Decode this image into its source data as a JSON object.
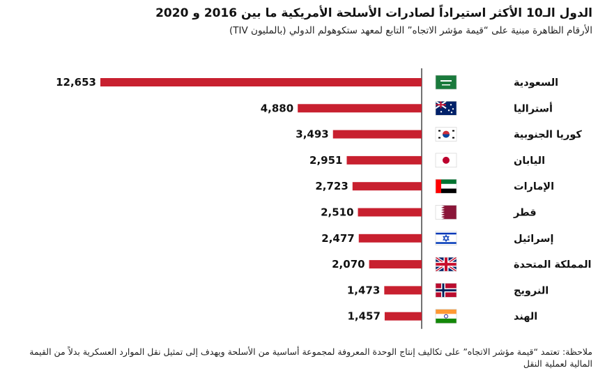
{
  "header": {
    "title": "الدول الـ10 الأكثر استيراداً لصادرات الأسلحة الأمريكية ما بين 2016 و 2020",
    "subtitle": "الأرقام الظاهرة مبنية على “قيمة مؤشر الاتجاه” التابع لمعهد ستكوهولم الدولي (بالمليون TIV)"
  },
  "note": "ملاحظة: تعتمد “قيمة مؤشر الاتجاه” على تكاليف إنتاج الوحدة المعروفة لمجموعة أساسية من الأسلحة ويهدف إلى تمثيل نقل الموارد العسكرية بدلاً من القيمة المالية لعملية النقل",
  "colors": {
    "bar": "#c8202f",
    "axis": "#444444",
    "text": "#111111"
  },
  "chart_data": {
    "type": "bar",
    "orientation": "horizontal",
    "direction": "right-to-left",
    "categories": [
      "السعودية",
      "أستراليا",
      "كوريا الجنوبية",
      "اليابان",
      "الإمارات",
      "قطر",
      "إسرائيل",
      "المملكة المتحدة",
      "النرويج",
      "الهند"
    ],
    "flags": [
      "saudi-arabia-flag-icon",
      "australia-flag-icon",
      "south-korea-flag-icon",
      "japan-flag-icon",
      "uae-flag-icon",
      "qatar-flag-icon",
      "israel-flag-icon",
      "uk-flag-icon",
      "norway-flag-icon",
      "india-flag-icon"
    ],
    "values": [
      12653,
      4880,
      3493,
      2951,
      2723,
      2510,
      2477,
      2070,
      1473,
      1457
    ],
    "value_labels": [
      "12,653",
      "4,880",
      "3,493",
      "2,951",
      "2,723",
      "2,510",
      "2,477",
      "2,070",
      "1,473",
      "1,457"
    ],
    "xlim": [
      0,
      12653
    ],
    "grid": false,
    "legend": "none"
  }
}
